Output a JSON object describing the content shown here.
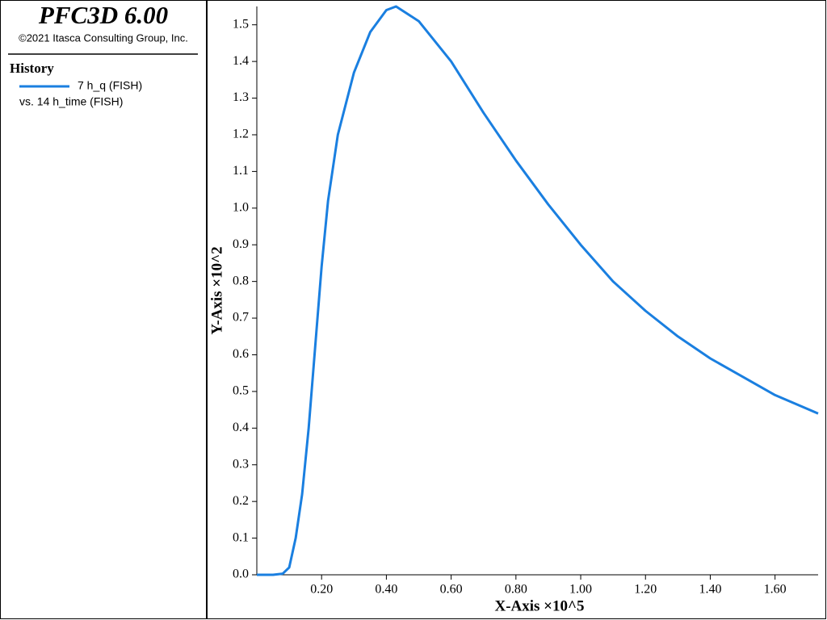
{
  "header": {
    "title": "PFC3D 6.00",
    "copyright": "©2021 Itasca Consulting Group, Inc."
  },
  "legend_title": "History",
  "x_series_name": "vs. 14 h_time (FISH)",
  "chart_data": {
    "type": "line",
    "xlabel": "X-Axis ×10^5",
    "ylabel": "Y-Axis ×10^2",
    "x": [
      0,
      0.05,
      0.08,
      0.1,
      0.12,
      0.14,
      0.16,
      0.18,
      0.2,
      0.22,
      0.25,
      0.3,
      0.35,
      0.4,
      0.43,
      0.5,
      0.6,
      0.7,
      0.8,
      0.9,
      1.0,
      1.1,
      1.2,
      1.3,
      1.4,
      1.5,
      1.6,
      1.733
    ],
    "series": [
      {
        "name": "7 h_q (FISH)",
        "color": "#1a7fe0",
        "values": [
          0,
          0,
          0.003,
          0.02,
          0.1,
          0.22,
          0.4,
          0.62,
          0.84,
          1.02,
          1.2,
          1.37,
          1.48,
          1.54,
          1.55,
          1.51,
          1.4,
          1.26,
          1.13,
          1.01,
          0.9,
          0.8,
          0.72,
          0.65,
          0.59,
          0.54,
          0.49,
          0.44
        ]
      }
    ],
    "xlim": [
      0,
      1.733
    ],
    "ylim": [
      0,
      1.55
    ],
    "xticks": [
      {
        "value": 0.2,
        "label": "0.20"
      },
      {
        "value": 0.4,
        "label": "0.40"
      },
      {
        "value": 0.6,
        "label": "0.60"
      },
      {
        "value": 0.8,
        "label": "0.80"
      },
      {
        "value": 1.0,
        "label": "1.00"
      },
      {
        "value": 1.2,
        "label": "1.20"
      },
      {
        "value": 1.4,
        "label": "1.40"
      },
      {
        "value": 1.6,
        "label": "1.60"
      }
    ],
    "yticks": [
      {
        "value": 0,
        "label": "0.0"
      },
      {
        "value": 0.1,
        "label": "0.1"
      },
      {
        "value": 0.2,
        "label": "0.2"
      },
      {
        "value": 0.3,
        "label": "0.3"
      },
      {
        "value": 0.4,
        "label": "0.4"
      },
      {
        "value": 0.5,
        "label": "0.5"
      },
      {
        "value": 0.6,
        "label": "0.6"
      },
      {
        "value": 0.7,
        "label": "0.7"
      },
      {
        "value": 0.8,
        "label": "0.8"
      },
      {
        "value": 0.9,
        "label": "0.9"
      },
      {
        "value": 1.0,
        "label": "1.0"
      },
      {
        "value": 1.1,
        "label": "1.1"
      },
      {
        "value": 1.2,
        "label": "1.2"
      },
      {
        "value": 1.3,
        "label": "1.3"
      },
      {
        "value": 1.4,
        "label": "1.4"
      },
      {
        "value": 1.5,
        "label": "1.5"
      }
    ],
    "grid": false
  }
}
